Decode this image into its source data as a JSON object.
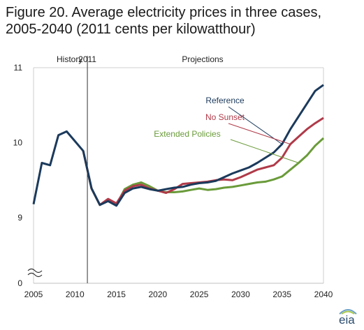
{
  "title_line1": "Figure 20. Average electricity prices in three cases,",
  "title_line2": "2005-2040 (2011 cents per kilowatthour)",
  "chart_data": {
    "type": "line",
    "title": "Figure 20. Average electricity prices in three cases, 2005-2040 (2011 cents per kilowatthour)",
    "xlabel": "",
    "ylabel": "",
    "xlim": [
      2005,
      2040
    ],
    "x_ticks": [
      2005,
      2010,
      2015,
      2020,
      2025,
      2030,
      2035,
      2040
    ],
    "y_ticks": [
      0,
      9,
      10,
      11
    ],
    "axis_break": true,
    "annotations": {
      "history": "History",
      "divider_year": "2011",
      "projections": "Projections"
    },
    "series": [
      {
        "name": "Reference",
        "color": "#1b3a5c",
        "x": [
          2005,
          2006,
          2007,
          2008,
          2009,
          2010,
          2011,
          2012,
          2013,
          2014,
          2015,
          2016,
          2017,
          2018,
          2019,
          2020,
          2021,
          2022,
          2023,
          2024,
          2025,
          2026,
          2027,
          2028,
          2029,
          2030,
          2031,
          2032,
          2033,
          2034,
          2035,
          2036,
          2037,
          2038,
          2039,
          2040
        ],
        "values": [
          9.18,
          9.73,
          9.7,
          10.1,
          10.15,
          10.02,
          9.89,
          9.39,
          9.17,
          9.22,
          9.16,
          9.33,
          9.39,
          9.41,
          9.38,
          9.36,
          9.38,
          9.4,
          9.41,
          9.44,
          9.46,
          9.47,
          9.49,
          9.54,
          9.59,
          9.63,
          9.67,
          9.73,
          9.8,
          9.87,
          9.98,
          10.18,
          10.35,
          10.52,
          10.69,
          10.77
        ]
      },
      {
        "name": "No Sunset",
        "color": "#b03a48",
        "x": [
          2011,
          2012,
          2013,
          2014,
          2015,
          2016,
          2017,
          2018,
          2019,
          2020,
          2021,
          2022,
          2023,
          2024,
          2025,
          2026,
          2027,
          2028,
          2029,
          2030,
          2031,
          2032,
          2033,
          2034,
          2035,
          2036,
          2037,
          2038,
          2039,
          2040
        ],
        "values": [
          9.89,
          9.39,
          9.17,
          9.25,
          9.19,
          9.36,
          9.42,
          9.44,
          9.39,
          9.36,
          9.33,
          9.38,
          9.45,
          9.46,
          9.47,
          9.48,
          9.5,
          9.51,
          9.5,
          9.54,
          9.59,
          9.64,
          9.67,
          9.7,
          9.8,
          9.98,
          10.08,
          10.18,
          10.26,
          10.33
        ]
      },
      {
        "name": "Extended Policies",
        "color": "#6a9b3a",
        "x": [
          2011,
          2012,
          2013,
          2014,
          2015,
          2016,
          2017,
          2018,
          2019,
          2020,
          2021,
          2022,
          2023,
          2024,
          2025,
          2026,
          2027,
          2028,
          2029,
          2030,
          2031,
          2032,
          2033,
          2034,
          2035,
          2036,
          2037,
          2038,
          2039,
          2040
        ],
        "values": [
          9.89,
          9.39,
          9.17,
          9.23,
          9.17,
          9.38,
          9.44,
          9.47,
          9.42,
          9.36,
          9.34,
          9.34,
          9.35,
          9.37,
          9.39,
          9.37,
          9.38,
          9.4,
          9.41,
          9.43,
          9.45,
          9.47,
          9.48,
          9.51,
          9.55,
          9.64,
          9.73,
          9.83,
          9.96,
          10.06
        ]
      }
    ]
  },
  "logo_text": "eia"
}
